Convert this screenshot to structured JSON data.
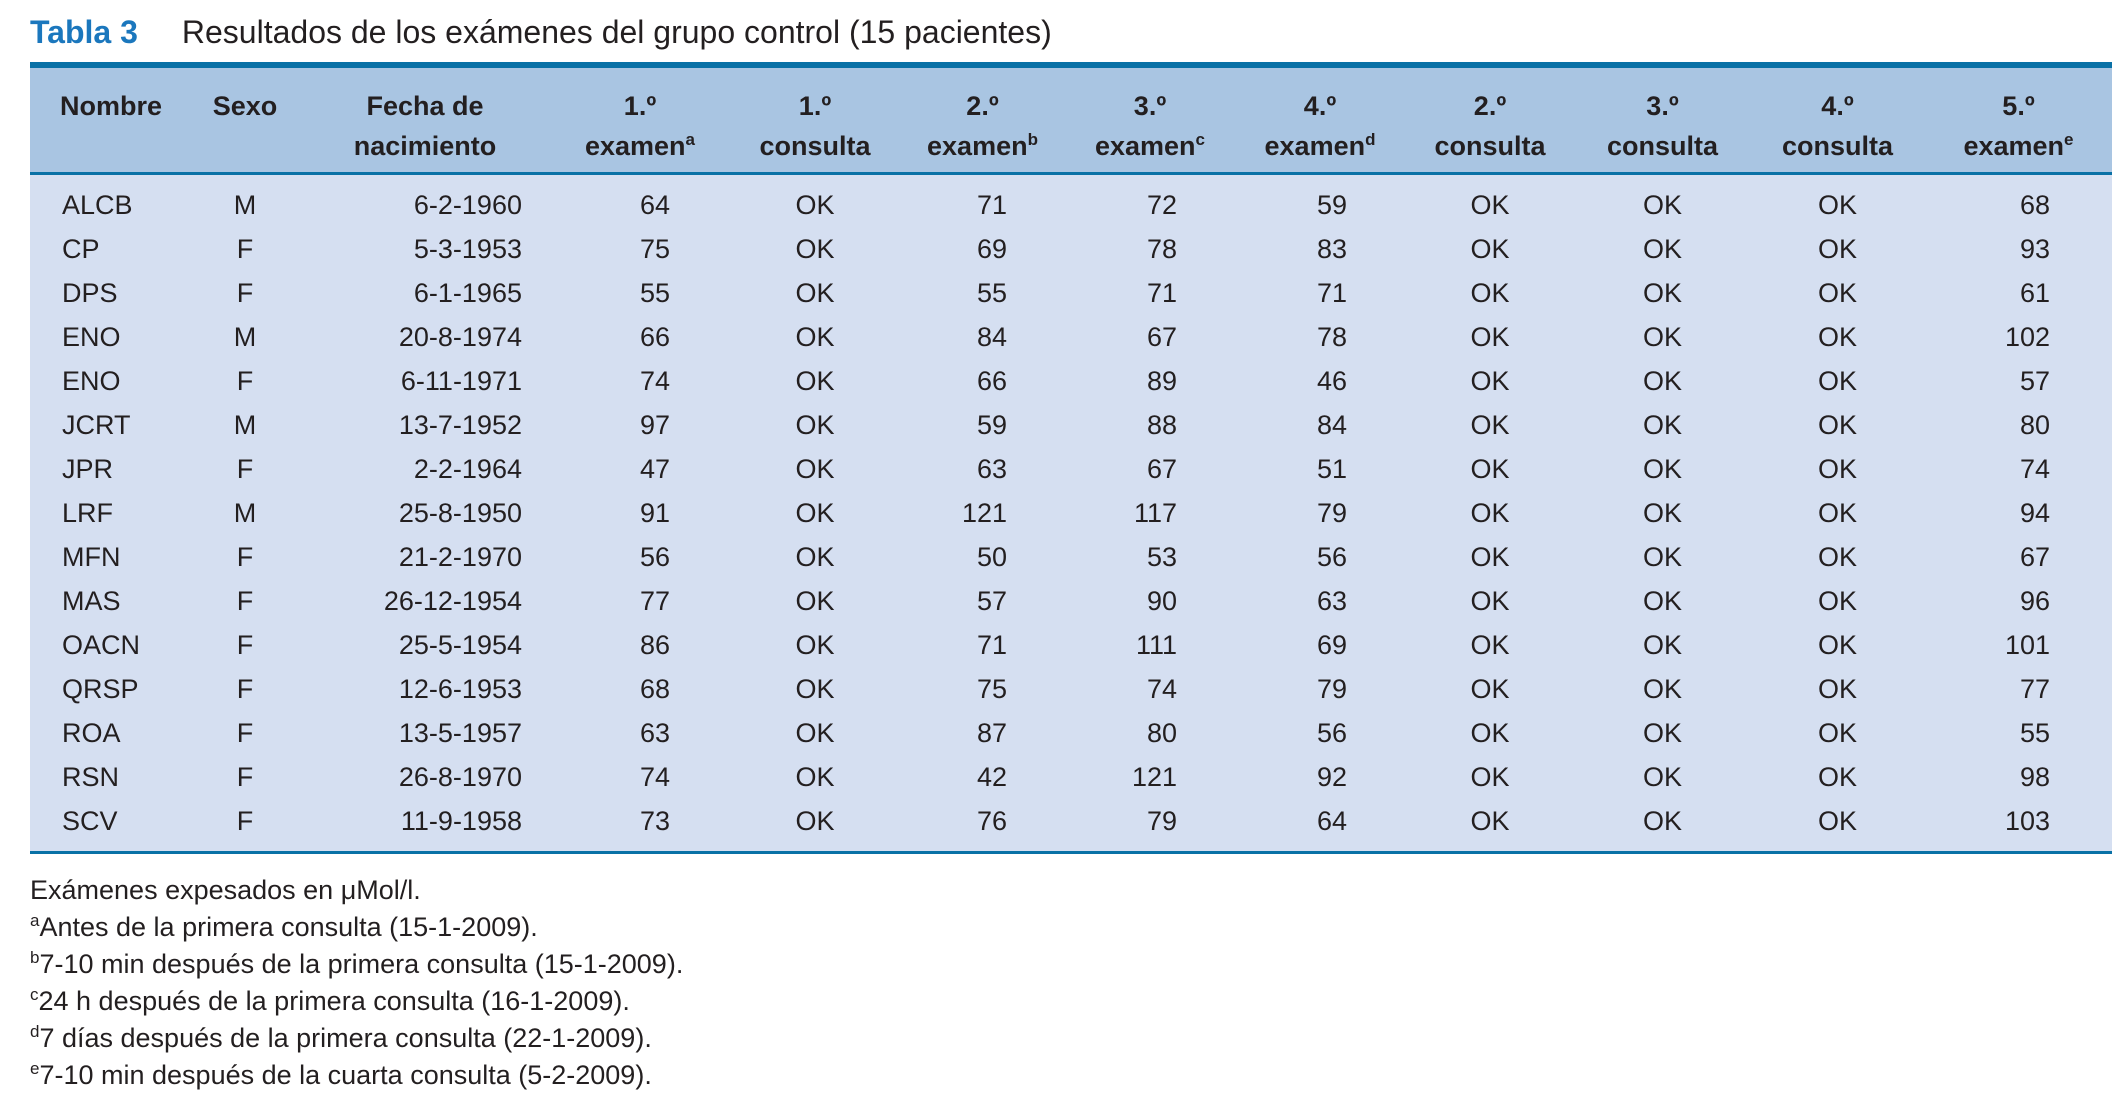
{
  "caption": {
    "label": "Tabla 3",
    "title": "Resultados de los exámenes del grupo control (15 pacientes)"
  },
  "colors": {
    "accent_blue": "#1b77bd",
    "rule_blue": "#0971a6",
    "header_bg": "#a9c5e2",
    "body_bg": "#d5dff1",
    "text": "#231f20"
  },
  "table": {
    "columns": [
      {
        "id": "nombre",
        "line1": "Nombre",
        "line2": "",
        "sup": ""
      },
      {
        "id": "sexo",
        "line1": "Sexo",
        "line2": "",
        "sup": ""
      },
      {
        "id": "fecha",
        "line1": "Fecha de",
        "line2": "nacimiento",
        "sup": ""
      },
      {
        "id": "examen-1",
        "line1": "1.º",
        "line2": "examen",
        "sup": "a"
      },
      {
        "id": "consulta-1",
        "line1": "1.º",
        "line2": "consulta",
        "sup": ""
      },
      {
        "id": "examen-2",
        "line1": "2.º",
        "line2": "examen",
        "sup": "b"
      },
      {
        "id": "examen-3",
        "line1": "3.º",
        "line2": "examen",
        "sup": "c"
      },
      {
        "id": "examen-4",
        "line1": "4.º",
        "line2": "examen",
        "sup": "d"
      },
      {
        "id": "consulta-2",
        "line1": "2.º",
        "line2": "consulta",
        "sup": ""
      },
      {
        "id": "consulta-3",
        "line1": "3.º",
        "line2": "consulta",
        "sup": ""
      },
      {
        "id": "consulta-4",
        "line1": "4.º",
        "line2": "consulta",
        "sup": ""
      },
      {
        "id": "examen-5",
        "line1": "5.º",
        "line2": "examen",
        "sup": "e"
      }
    ],
    "rows": [
      [
        "ALCB",
        "M",
        "6-2-1960",
        "64",
        "OK",
        "71",
        "72",
        "59",
        "OK",
        "OK",
        "OK",
        "68"
      ],
      [
        "CP",
        "F",
        "5-3-1953",
        "75",
        "OK",
        "69",
        "78",
        "83",
        "OK",
        "OK",
        "OK",
        "93"
      ],
      [
        "DPS",
        "F",
        "6-1-1965",
        "55",
        "OK",
        "55",
        "71",
        "71",
        "OK",
        "OK",
        "OK",
        "61"
      ],
      [
        "ENO",
        "M",
        "20-8-1974",
        "66",
        "OK",
        "84",
        "67",
        "78",
        "OK",
        "OK",
        "OK",
        "102"
      ],
      [
        "ENO",
        "F",
        "6-11-1971",
        "74",
        "OK",
        "66",
        "89",
        "46",
        "OK",
        "OK",
        "OK",
        "57"
      ],
      [
        "JCRT",
        "M",
        "13-7-1952",
        "97",
        "OK",
        "59",
        "88",
        "84",
        "OK",
        "OK",
        "OK",
        "80"
      ],
      [
        "JPR",
        "F",
        "2-2-1964",
        "47",
        "OK",
        "63",
        "67",
        "51",
        "OK",
        "OK",
        "OK",
        "74"
      ],
      [
        "LRF",
        "M",
        "25-8-1950",
        "91",
        "OK",
        "121",
        "117",
        "79",
        "OK",
        "OK",
        "OK",
        "94"
      ],
      [
        "MFN",
        "F",
        "21-2-1970",
        "56",
        "OK",
        "50",
        "53",
        "56",
        "OK",
        "OK",
        "OK",
        "67"
      ],
      [
        "MAS",
        "F",
        "26-12-1954",
        "77",
        "OK",
        "57",
        "90",
        "63",
        "OK",
        "OK",
        "OK",
        "96"
      ],
      [
        "OACN",
        "F",
        "25-5-1954",
        "86",
        "OK",
        "71",
        "111",
        "69",
        "OK",
        "OK",
        "OK",
        "101"
      ],
      [
        "QRSP",
        "F",
        "12-6-1953",
        "68",
        "OK",
        "75",
        "74",
        "79",
        "OK",
        "OK",
        "OK",
        "77"
      ],
      [
        "ROA",
        "F",
        "13-5-1957",
        "63",
        "OK",
        "87",
        "80",
        "56",
        "OK",
        "OK",
        "OK",
        "55"
      ],
      [
        "RSN",
        "F",
        "26-8-1970",
        "74",
        "OK",
        "42",
        "121",
        "92",
        "OK",
        "OK",
        "OK",
        "98"
      ],
      [
        "SCV",
        "F",
        "11-9-1958",
        "73",
        "OK",
        "76",
        "79",
        "64",
        "OK",
        "OK",
        "OK",
        "103"
      ]
    ]
  },
  "footnotes": [
    {
      "sup": "",
      "text": "Exámenes expesados en μMol/l."
    },
    {
      "sup": "a",
      "text": "Antes de la primera consulta (15-1-2009)."
    },
    {
      "sup": "b",
      "text": "7-10 min después de la primera consulta (15-1-2009)."
    },
    {
      "sup": "c",
      "text": "24 h después de la primera consulta (16-1-2009)."
    },
    {
      "sup": "d",
      "text": "7 días después de la primera consulta (22-1-2009)."
    },
    {
      "sup": "e",
      "text": "7-10 min después de la cuarta consulta (5-2-2009)."
    }
  ]
}
